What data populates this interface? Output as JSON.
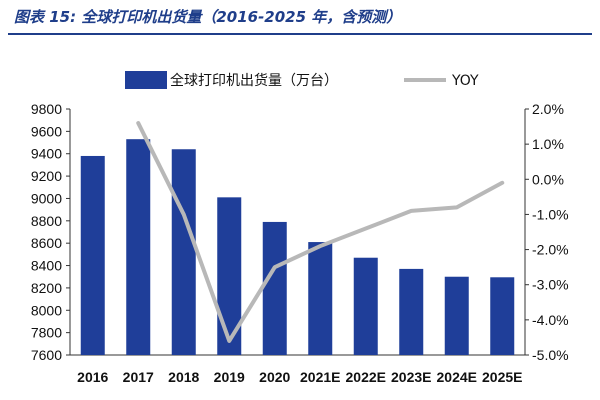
{
  "title": "图表 15:  全球打印机出货量（2016-2025 年，含预测）",
  "colors": {
    "bar": "#1f3e99",
    "line": "#b8b8b8",
    "title": "#1f3e8a",
    "axis": "#333333"
  },
  "chart_data": {
    "type": "bar",
    "categories": [
      "2016",
      "2017",
      "2018",
      "2019",
      "2020",
      "2021E",
      "2022E",
      "2023E",
      "2024E",
      "2025E"
    ],
    "series": [
      {
        "name": "全球打印机出货量（万台）",
        "type": "bar",
        "axis": "left",
        "values": [
          9380,
          9530,
          9440,
          9010,
          8790,
          8610,
          8470,
          8370,
          8300,
          8295
        ]
      },
      {
        "name": "YOY",
        "type": "line",
        "axis": "right",
        "values": [
          null,
          1.6,
          -1.0,
          -4.6,
          -2.5,
          -1.9,
          -1.4,
          -0.9,
          -0.8,
          -0.1
        ]
      }
    ],
    "ylim": [
      7600,
      9800
    ],
    "y2lim": [
      -5.0,
      2.0
    ],
    "yticks": [
      "9800",
      "9600",
      "9400",
      "9200",
      "9000",
      "8800",
      "8600",
      "8400",
      "8200",
      "8000",
      "7800",
      "7600"
    ],
    "y2ticks": [
      "2.0%",
      "1.0%",
      "0.0%",
      "-1.0%",
      "-2.0%",
      "-3.0%",
      "-4.0%",
      "-5.0%"
    ],
    "legend": "top",
    "grid": false
  }
}
